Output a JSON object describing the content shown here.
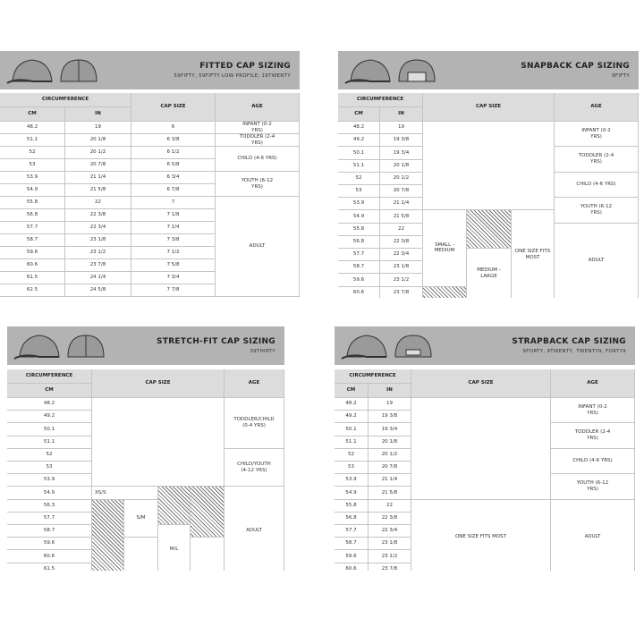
{
  "panels": [
    {
      "title": "FITTED CAP SIZING",
      "subtitle": "59FIFTY, 59FIFTY LOW PROFILE, 19TWENTY",
      "header": {
        "circumference": "CIRCUMFERENCE",
        "cm": "CM",
        "in": "IN",
        "cap_size": "CAP SIZE",
        "age": "AGE"
      },
      "rows": [
        {
          "cm": "48.2",
          "in": "19"
        },
        {
          "cm": "51.1",
          "in": "20 1/8"
        },
        {
          "cm": "52",
          "in": "20 1/2"
        },
        {
          "cm": "53",
          "in": "20 7/8"
        },
        {
          "cm": "53.9",
          "in": "21 1/4"
        },
        {
          "cm": "54.9",
          "in": "21 5/8"
        },
        {
          "cm": "55.8",
          "in": "22"
        },
        {
          "cm": "56.8",
          "in": "22 3/8"
        },
        {
          "cm": "57.7",
          "in": "22 3/4"
        },
        {
          "cm": "58.7",
          "in": "23 1/8"
        },
        {
          "cm": "59.6",
          "in": "23 1/2"
        },
        {
          "cm": "60.6",
          "in": "23 7/8"
        },
        {
          "cm": "61.5",
          "in": "24 1/4"
        },
        {
          "cm": "62.5",
          "in": "24 5/8"
        }
      ],
      "cap_sizes": [
        "6",
        "6 3/8",
        "6 1/2",
        "6 5/8",
        "6 3/4",
        "6 7/8",
        "7",
        "7 1/8",
        "7 1/4",
        "7 3/8",
        "7 1/2",
        "7 5/8",
        "7 3/4",
        "7 7/8"
      ],
      "ages": [
        "INFANT (0-2 YRS)",
        "TODDLER (2-4 YRS)",
        "CHILD (4-6 YRS)",
        "YOUTH (6-12 YRS)",
        "ADULT"
      ]
    },
    {
      "title": "SNAPBACK CAP SIZING",
      "subtitle": "9FIFTY",
      "header": {
        "circumference": "CIRCUMFERENCE",
        "cm": "CM",
        "in": "IN",
        "cap_size": "CAP SIZE",
        "age": "AGE"
      },
      "rows": [
        {
          "cm": "48.2",
          "in": "19"
        },
        {
          "cm": "49.2",
          "in": "19 3/8"
        },
        {
          "cm": "50.1",
          "in": "19 3/4"
        },
        {
          "cm": "51.1",
          "in": "20 1/8"
        },
        {
          "cm": "52",
          "in": "20 1/2"
        },
        {
          "cm": "53",
          "in": "20 7/8"
        },
        {
          "cm": "53.9",
          "in": "21 1/4"
        },
        {
          "cm": "54.9",
          "in": "21 5/8"
        },
        {
          "cm": "55.8",
          "in": "22"
        },
        {
          "cm": "56.8",
          "in": "22 3/8"
        },
        {
          "cm": "57.7",
          "in": "22 3/4"
        },
        {
          "cm": "58.7",
          "in": "23 1/8"
        },
        {
          "cm": "59.6",
          "in": "23 1/2"
        },
        {
          "cm": "60.6",
          "in": "23 7/8"
        }
      ],
      "cap_sizes": [
        "SMALL - MEDIUM",
        "MEDIUM - LARGE",
        "ONE SIZE FITS MOST"
      ],
      "ages": [
        "INFANT (0-2 YRS)",
        "TODDLER (2-4 YRS)",
        "CHILD (4-6 YRS)",
        "YOUTH (6-12 YRS)",
        "ADULT"
      ]
    },
    {
      "title": "STRETCH-FIT CAP SIZING",
      "subtitle": "39THIRTY",
      "header": {
        "circumference": "CIRCUMFERENCE",
        "cm": "CM",
        "cap_size": "CAP SIZE",
        "age": "AGE"
      },
      "rows": [
        {
          "cm": "48.2"
        },
        {
          "cm": "49.2"
        },
        {
          "cm": "50.1"
        },
        {
          "cm": "51.1"
        },
        {
          "cm": "52"
        },
        {
          "cm": "53"
        },
        {
          "cm": "53.9"
        },
        {
          "cm": "54.9"
        },
        {
          "cm": "56.3"
        },
        {
          "cm": "57.7"
        },
        {
          "cm": "58.7"
        },
        {
          "cm": "59.6"
        },
        {
          "cm": "60.6"
        },
        {
          "cm": "61.5"
        }
      ],
      "cap_sizes": [
        "XS/S",
        "S/M",
        "M/L"
      ],
      "ages": [
        "TODDLER/CHILD (0-4 YRS)",
        "CHILD/YOUTH (4-12 YRS)",
        "ADULT"
      ]
    },
    {
      "title": "STRAPBACK CAP SIZING",
      "subtitle": "9FORTY, 9TWENTY, TWENTY9, FORTY9",
      "header": {
        "circumference": "CIRCUMFERENCE",
        "cm": "CM",
        "in": "IN",
        "cap_size": "CAP SIZE",
        "age": "AGE"
      },
      "rows": [
        {
          "cm": "48.2",
          "in": "19"
        },
        {
          "cm": "49.2",
          "in": "19 3/8"
        },
        {
          "cm": "50.1",
          "in": "19 3/4"
        },
        {
          "cm": "51.1",
          "in": "20 1/8"
        },
        {
          "cm": "52",
          "in": "20 1/2"
        },
        {
          "cm": "53",
          "in": "20 7/8"
        },
        {
          "cm": "53.9",
          "in": "21 1/4"
        },
        {
          "cm": "54.9",
          "in": "21 5/8"
        },
        {
          "cm": "55.8",
          "in": "22"
        },
        {
          "cm": "56.8",
          "in": "22 3/8"
        },
        {
          "cm": "57.7",
          "in": "22 3/4"
        },
        {
          "cm": "58.7",
          "in": "23 1/8"
        },
        {
          "cm": "59.6",
          "in": "23 1/2"
        },
        {
          "cm": "60.6",
          "in": "23 7/8"
        }
      ],
      "cap_sizes": [
        "ONE SIZE FITS MOST"
      ],
      "ages": [
        "INFANT (0-2 YRS)",
        "TODDLER (2-4 YRS)",
        "CHILD (4-6 YRS)",
        "YOUTH (6-12 YRS)",
        "ADULT"
      ]
    }
  ]
}
